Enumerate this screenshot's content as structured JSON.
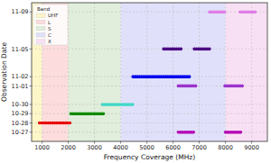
{
  "chart_data": {
    "type": "range",
    "x_label": "Frequency Coverage (MHz)",
    "y_label": "Observation Date",
    "xlim": [
      600,
      9600
    ],
    "xticks": [
      1000,
      2000,
      3000,
      4000,
      5000,
      6000,
      7000,
      8000,
      9000
    ],
    "ylim": [
      "10-26",
      "11-10"
    ],
    "yticks": [
      "10-27",
      "10-28",
      "10-29",
      "10-30",
      "11-01",
      "11-02",
      "11-05",
      "11-09"
    ],
    "grid": true,
    "legend": "upper left",
    "legend_title": "Band",
    "bands": [
      {
        "name": "UHF",
        "start": 300,
        "end": 1000,
        "color": "#fdf6c8"
      },
      {
        "name": "L",
        "start": 1000,
        "end": 2000,
        "color": "#fcdcdc"
      },
      {
        "name": "S",
        "start": 2000,
        "end": 4000,
        "color": "#e0eedb"
      },
      {
        "name": "C",
        "start": 4000,
        "end": 8000,
        "color": "#e0e0fa"
      },
      {
        "name": "X",
        "start": 8000,
        "end": 12000,
        "color": "#f8e0f4"
      }
    ],
    "segments": [
      {
        "date": "10-27",
        "start": 6200,
        "end": 6850,
        "color": "#b400b4"
      },
      {
        "date": "10-27",
        "start": 8000,
        "end": 8650,
        "color": "#b400b4"
      },
      {
        "date": "10-28",
        "start": 900,
        "end": 2130,
        "color": "#e8000b"
      },
      {
        "date": "10-29",
        "start": 2100,
        "end": 3370,
        "color": "#128a00"
      },
      {
        "date": "10-30",
        "start": 3300,
        "end": 4470,
        "color": "#40d8c8"
      },
      {
        "date": "11-01",
        "start": 6200,
        "end": 6880,
        "color": "#9a34cc"
      },
      {
        "date": "11-01",
        "start": 7980,
        "end": 8660,
        "color": "#9a34cc"
      },
      {
        "date": "11-02",
        "start": 4470,
        "end": 6640,
        "color": "#0000ee"
      },
      {
        "date": "11-05",
        "start": 5640,
        "end": 6360,
        "color": "#4b0082"
      },
      {
        "date": "11-05",
        "start": 6810,
        "end": 7430,
        "color": "#4b0082"
      },
      {
        "date": "11-09",
        "start": 7390,
        "end": 8010,
        "color": "#e07ee6"
      },
      {
        "date": "11-09",
        "start": 8560,
        "end": 9210,
        "color": "#e07ee6"
      }
    ]
  }
}
